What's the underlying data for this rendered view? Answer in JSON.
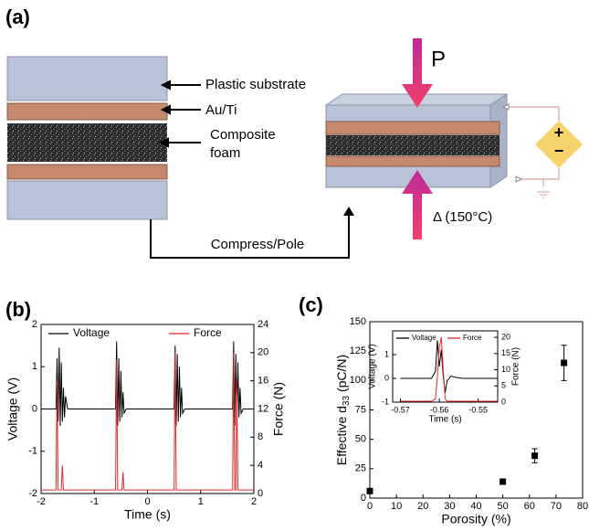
{
  "panel_a": {
    "label": "(a)",
    "plastic_substrate": "Plastic substrate",
    "au_ti": "Au/Ti",
    "composite_foam": [
      "Composite",
      "foam"
    ],
    "pressure": "P",
    "heat": "Δ (150°C)",
    "compress_pole": "Compress/Pole",
    "plus": "+",
    "minus": "−"
  },
  "chart_data": [
    {
      "type": "line",
      "label": "(b)",
      "xlabel": "Time (s)",
      "ylabel": "Voltage (V)",
      "y2label": "Force (N)",
      "xlim": [
        -2,
        2
      ],
      "xticks": [
        -2,
        -1,
        0,
        1,
        2
      ],
      "ylim": [
        -2,
        2
      ],
      "yticks": [
        -2,
        -1,
        0,
        1,
        2
      ],
      "y2lim": [
        0,
        24
      ],
      "y2ticks": [
        0,
        4,
        8,
        12,
        16,
        20,
        24
      ],
      "x": [
        -2,
        -1.72,
        -1.7,
        -1.68,
        -1.66,
        -1.64,
        -1.62,
        -1.6,
        -1.58,
        -1.56,
        -1.54,
        -1.5,
        -0.6,
        -0.58,
        -0.56,
        -0.54,
        -0.52,
        -0.5,
        -0.48,
        -0.46,
        -0.44,
        -0.4,
        0.5,
        0.52,
        0.54,
        0.56,
        0.58,
        0.6,
        0.62,
        0.64,
        0.66,
        0.7,
        1.6,
        1.62,
        1.64,
        1.66,
        1.68,
        1.7,
        1.72,
        1.74,
        1.76,
        1.8,
        2
      ],
      "series": [
        {
          "name": "Voltage",
          "color": "#000000",
          "values": [
            0,
            0,
            1.2,
            -0.3,
            1.45,
            -0.4,
            1.1,
            -0.3,
            0.5,
            -0.2,
            0.3,
            0,
            0,
            1.6,
            -0.4,
            1.2,
            -0.3,
            0.9,
            -0.2,
            0.4,
            -0.1,
            0,
            0,
            1.5,
            -0.4,
            1.3,
            -0.3,
            1.0,
            -0.2,
            0.5,
            -0.1,
            0,
            0,
            1.6,
            -0.4,
            1.3,
            -0.3,
            1.1,
            -0.2,
            0.5,
            -0.1,
            0,
            0
          ]
        },
        {
          "name": "Force",
          "color": "#e8252a",
          "axis": "y2",
          "values": [
            0.5,
            0.5,
            16,
            0.5,
            0.5,
            0.5,
            0.5,
            4,
            0.5,
            0.5,
            0.5,
            0.5,
            0.5,
            19,
            0.5,
            0.5,
            0.5,
            0.5,
            0.5,
            3,
            0.5,
            0.5,
            0.5,
            20,
            0.5,
            0.5,
            0.5,
            0.5,
            0.5,
            0.5,
            0.5,
            0.5,
            0.5,
            20,
            0.5,
            0.5,
            16,
            0.5,
            0.5,
            0.5,
            0.5,
            0.5,
            0.5
          ]
        }
      ]
    },
    {
      "type": "scatter",
      "label": "(c)",
      "xlabel": "Porosity (%)",
      "ylabel": {
        "text": "Effective d",
        "sub": "33",
        "unit": " (pC/N)"
      },
      "xlim": [
        0,
        80
      ],
      "xticks": [
        0,
        10,
        20,
        30,
        40,
        50,
        60,
        70,
        80
      ],
      "ylim": [
        0,
        150
      ],
      "yticks": [
        0,
        25,
        50,
        75,
        100,
        125,
        150
      ],
      "x": [
        0,
        50,
        62,
        73
      ],
      "values": [
        6,
        14,
        36,
        115
      ],
      "errors": [
        null,
        null,
        6,
        15
      ],
      "color": "#000000"
    },
    {
      "type": "line",
      "xlabel": "Time (s)",
      "ylabel": "Voltage (V)",
      "y2label": "Force (N)",
      "xlim": [
        -0.572,
        -0.545
      ],
      "xticks": [
        -0.57,
        -0.56,
        -0.55
      ],
      "ylim": [
        -1,
        2
      ],
      "yticks": [
        -1,
        0,
        1
      ],
      "y2lim": [
        0,
        22
      ],
      "y2ticks": [
        0,
        5,
        10,
        15,
        20
      ],
      "x": [
        -0.57,
        -0.565,
        -0.562,
        -0.561,
        -0.5605,
        -0.56,
        -0.5595,
        -0.559,
        -0.5585,
        -0.558,
        -0.557,
        -0.556,
        -0.554,
        -0.552,
        -0.55,
        -0.545
      ],
      "series": [
        {
          "name": "Voltage",
          "color": "#000000",
          "values": [
            0,
            0,
            0,
            0.3,
            1.6,
            0.5,
            1.2,
            0.1,
            -0.6,
            -0.1,
            0.1,
            0.05,
            0,
            0,
            0,
            0
          ]
        },
        {
          "name": "Force",
          "color": "#e8252a",
          "axis": "y2",
          "values": [
            0.3,
            0.3,
            0.3,
            1,
            8,
            17,
            20,
            10,
            1,
            0.3,
            0.3,
            0.3,
            0.3,
            0.3,
            0.3,
            0.3
          ]
        }
      ]
    }
  ]
}
